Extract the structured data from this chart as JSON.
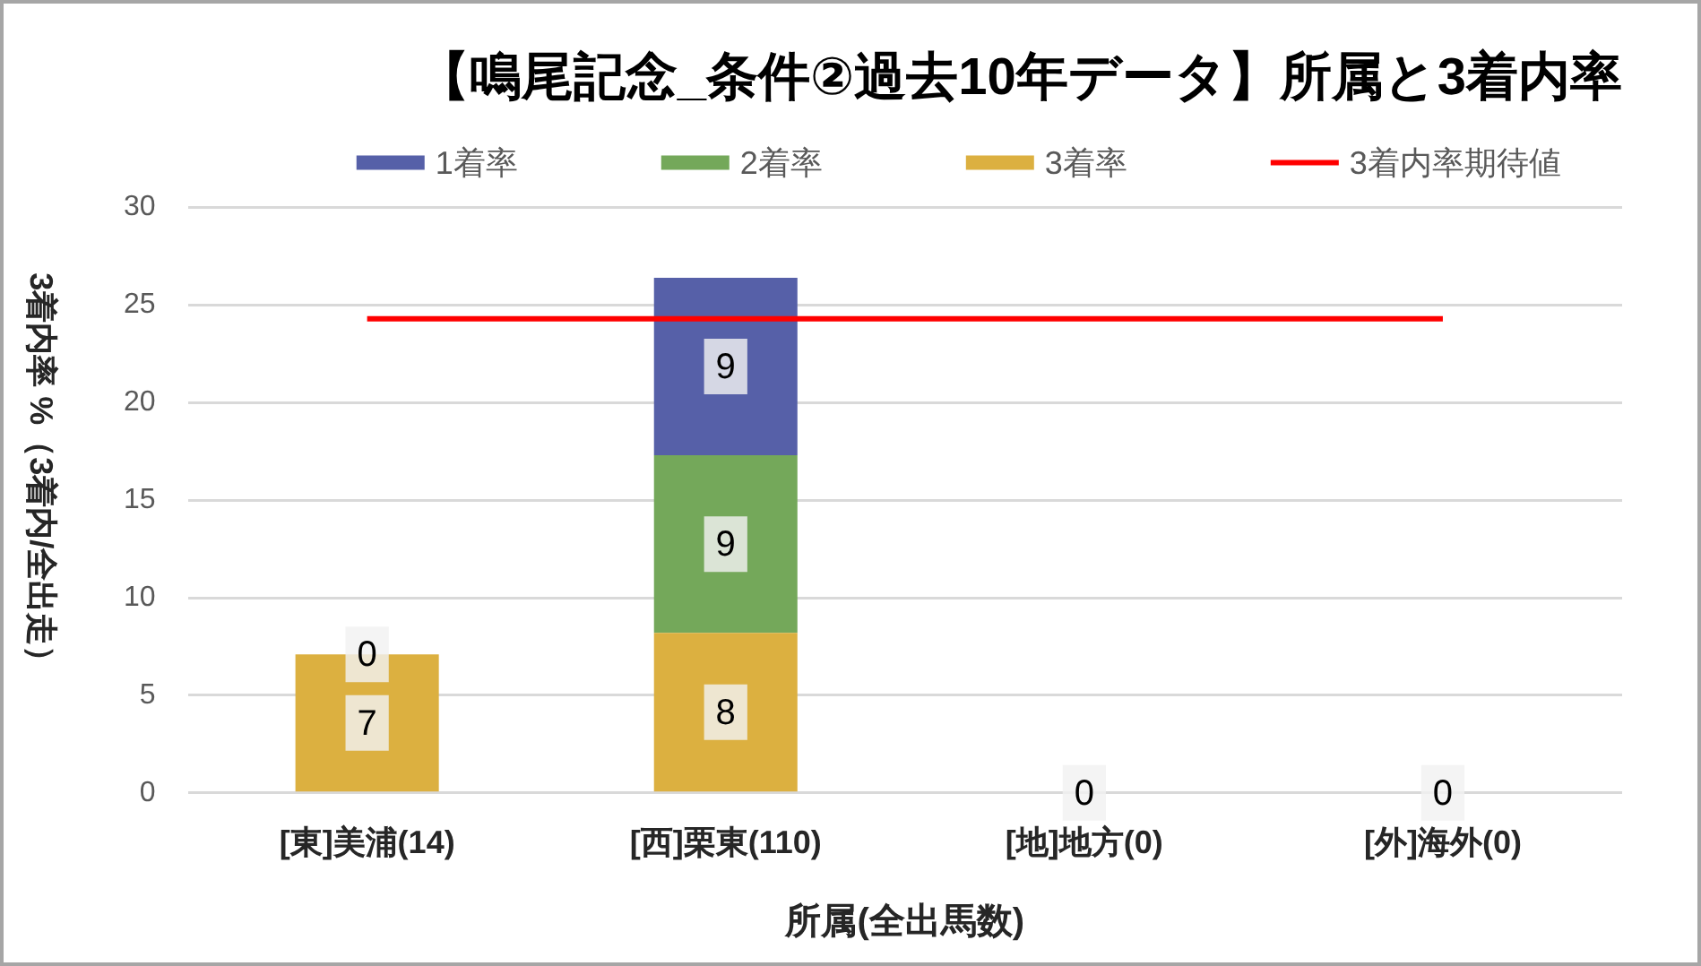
{
  "chart_data": {
    "type": "bar",
    "title": "【鳴尾記念_条件②過去10年データ】所属と3着内率",
    "xlabel": "所属(全出馬数)",
    "ylabel": "3着内率 %（3着内/全出走）",
    "categories": [
      "[東]美浦(14)",
      "[西]栗東(110)",
      "[地]地方(0)",
      "[外]海外(0)"
    ],
    "stacked": true,
    "series": [
      {
        "name": "3着率",
        "color": "#dcb040",
        "values": [
          7.1,
          8.2,
          0,
          0
        ],
        "value_labels": [
          "7",
          "8",
          null,
          null
        ]
      },
      {
        "name": "2着率",
        "color": "#74a85a",
        "values": [
          0,
          9.1,
          0,
          0
        ],
        "value_labels": [
          null,
          "9",
          null,
          null
        ]
      },
      {
        "name": "1着率",
        "color": "#5660a8",
        "values": [
          0,
          9.1,
          0,
          0
        ],
        "value_labels": [
          "0",
          "9",
          "0",
          "0"
        ]
      },
      {
        "name": "3着内率期待値",
        "type": "line",
        "color": "#ff0000",
        "values": [
          24.3,
          24.3,
          24.3,
          24.3
        ]
      }
    ],
    "ylim": [
      0,
      30
    ],
    "yticks": [
      0,
      5,
      10,
      15,
      20,
      25,
      30
    ],
    "grid": "y",
    "legend": "top",
    "marker": "none"
  }
}
